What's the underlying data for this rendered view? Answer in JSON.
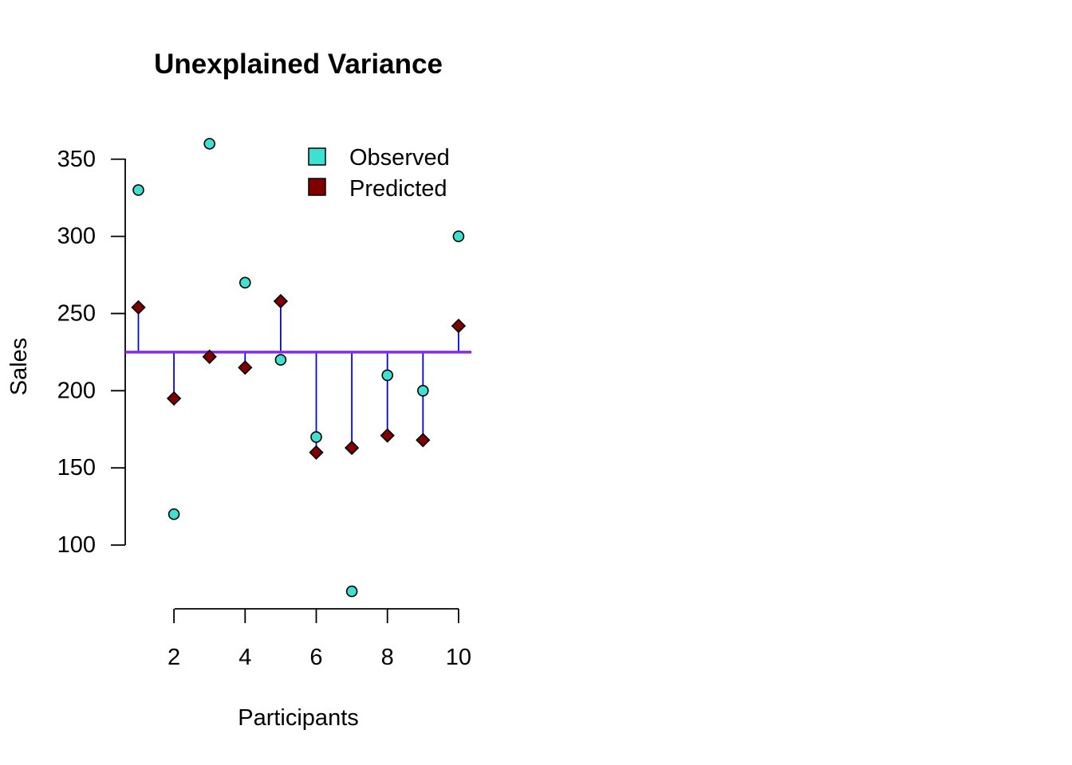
{
  "chart_data": {
    "type": "scatter",
    "title": "Unexplained Variance",
    "xlabel": "Participants",
    "ylabel": "Sales",
    "x_ticks": [
      "2",
      "4",
      "6",
      "8",
      "10"
    ],
    "y_ticks": [
      "100",
      "150",
      "200",
      "250",
      "300",
      "350"
    ],
    "xlim": [
      0.7,
      10.3
    ],
    "ylim": [
      60,
      370
    ],
    "grid": false,
    "legend_position": "top-right",
    "mean_line": {
      "value": 225,
      "color": "#8A2BE2"
    },
    "residual_color": "#0000FF",
    "x": [
      1,
      2,
      3,
      4,
      5,
      6,
      7,
      8,
      9,
      10
    ],
    "series": [
      {
        "name": "Observed",
        "marker": "circle",
        "color": "#40E0D0",
        "values": [
          330,
          120,
          360,
          270,
          220,
          170,
          70,
          210,
          200,
          300
        ]
      },
      {
        "name": "Predicted",
        "marker": "diamond",
        "color": "#800000",
        "values": [
          254,
          195,
          222,
          215,
          258,
          160,
          163,
          171,
          168,
          242
        ]
      }
    ]
  }
}
